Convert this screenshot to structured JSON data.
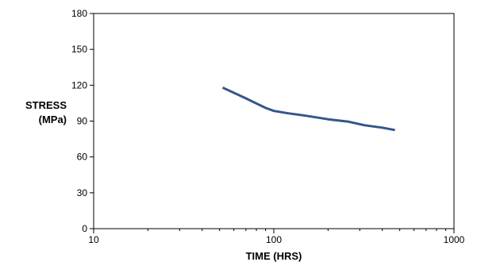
{
  "chart_data": {
    "type": "line",
    "xlabel": "TIME (HRS)",
    "ylabel": [
      "STRESS",
      "(MPa)"
    ],
    "x_scale": "log",
    "xlim": [
      10,
      1000
    ],
    "ylim": [
      0,
      180
    ],
    "x_ticks": [
      "10",
      "100",
      "1000"
    ],
    "y_ticks": [
      "0",
      "30",
      "60",
      "90",
      "120",
      "150",
      "180"
    ],
    "grid": false,
    "legend": "none",
    "line_color": "#34558b",
    "series": [
      {
        "x": [
          52,
          70,
          90,
          100,
          120,
          150,
          200,
          260,
          320,
          400,
          470
        ],
        "y": [
          118,
          109,
          101,
          98.5,
          96.5,
          94.5,
          91.5,
          89.5,
          86.5,
          84.5,
          82.5
        ]
      }
    ]
  }
}
